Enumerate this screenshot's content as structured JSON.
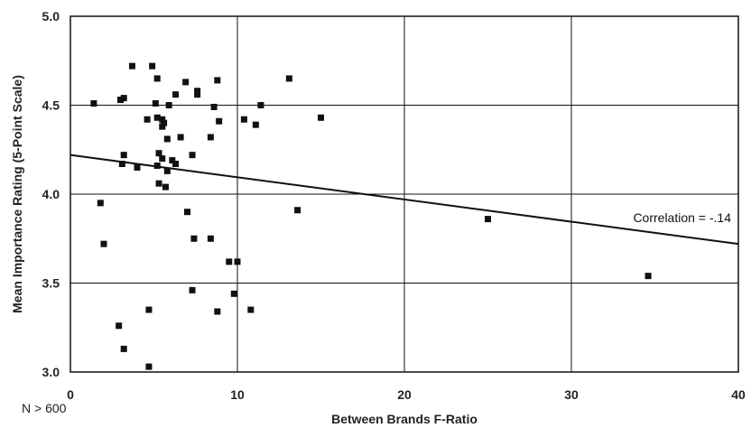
{
  "chart_data": {
    "type": "scatter",
    "title": "",
    "xlabel": "Between Brands F-Ratio",
    "ylabel": "Mean Importance Rating (5-Point Scale)",
    "xlim": [
      0,
      40
    ],
    "ylim": [
      3.0,
      5.0
    ],
    "x_ticks": [
      "0",
      "10",
      "20",
      "30",
      "40"
    ],
    "y_ticks": [
      "3.0",
      "3.5",
      "4.0",
      "4.5",
      "5.0"
    ],
    "grid": true,
    "note": "N > 600",
    "annotation": "Correlation = -.14",
    "trendline": {
      "x": [
        0,
        40
      ],
      "y": [
        4.22,
        3.72
      ]
    },
    "points": [
      {
        "x": 1.4,
        "y": 4.51
      },
      {
        "x": 3.0,
        "y": 4.53
      },
      {
        "x": 3.2,
        "y": 4.54
      },
      {
        "x": 3.7,
        "y": 4.72
      },
      {
        "x": 4.9,
        "y": 4.72
      },
      {
        "x": 5.2,
        "y": 4.65
      },
      {
        "x": 5.1,
        "y": 4.51
      },
      {
        "x": 4.6,
        "y": 4.42
      },
      {
        "x": 5.2,
        "y": 4.43
      },
      {
        "x": 5.5,
        "y": 4.42
      },
      {
        "x": 5.6,
        "y": 4.4
      },
      {
        "x": 5.5,
        "y": 4.38
      },
      {
        "x": 5.9,
        "y": 4.5
      },
      {
        "x": 6.3,
        "y": 4.56
      },
      {
        "x": 6.9,
        "y": 4.63
      },
      {
        "x": 7.6,
        "y": 4.58
      },
      {
        "x": 7.6,
        "y": 4.56
      },
      {
        "x": 8.8,
        "y": 4.64
      },
      {
        "x": 8.6,
        "y": 4.49
      },
      {
        "x": 8.9,
        "y": 4.41
      },
      {
        "x": 10.4,
        "y": 4.42
      },
      {
        "x": 11.1,
        "y": 4.39
      },
      {
        "x": 11.4,
        "y": 4.5
      },
      {
        "x": 13.1,
        "y": 4.65
      },
      {
        "x": 15.0,
        "y": 4.43
      },
      {
        "x": 5.8,
        "y": 4.31
      },
      {
        "x": 6.6,
        "y": 4.32
      },
      {
        "x": 8.4,
        "y": 4.32
      },
      {
        "x": 3.2,
        "y": 4.22
      },
      {
        "x": 5.3,
        "y": 4.23
      },
      {
        "x": 5.5,
        "y": 4.2
      },
      {
        "x": 7.3,
        "y": 4.22
      },
      {
        "x": 6.1,
        "y": 4.19
      },
      {
        "x": 6.3,
        "y": 4.17
      },
      {
        "x": 3.1,
        "y": 4.17
      },
      {
        "x": 4.0,
        "y": 4.15
      },
      {
        "x": 5.2,
        "y": 4.16
      },
      {
        "x": 5.8,
        "y": 4.13
      },
      {
        "x": 5.3,
        "y": 4.06
      },
      {
        "x": 5.7,
        "y": 4.04
      },
      {
        "x": 1.8,
        "y": 3.95
      },
      {
        "x": 7.0,
        "y": 3.9
      },
      {
        "x": 13.6,
        "y": 3.91
      },
      {
        "x": 25.0,
        "y": 3.86
      },
      {
        "x": 2.0,
        "y": 3.72
      },
      {
        "x": 7.4,
        "y": 3.75
      },
      {
        "x": 8.4,
        "y": 3.75
      },
      {
        "x": 9.5,
        "y": 3.62
      },
      {
        "x": 10.0,
        "y": 3.62
      },
      {
        "x": 7.3,
        "y": 3.46
      },
      {
        "x": 9.8,
        "y": 3.44
      },
      {
        "x": 34.6,
        "y": 3.54
      },
      {
        "x": 4.7,
        "y": 3.35
      },
      {
        "x": 8.8,
        "y": 3.34
      },
      {
        "x": 10.8,
        "y": 3.35
      },
      {
        "x": 2.9,
        "y": 3.26
      },
      {
        "x": 3.2,
        "y": 3.13
      },
      {
        "x": 4.7,
        "y": 3.03
      }
    ]
  }
}
